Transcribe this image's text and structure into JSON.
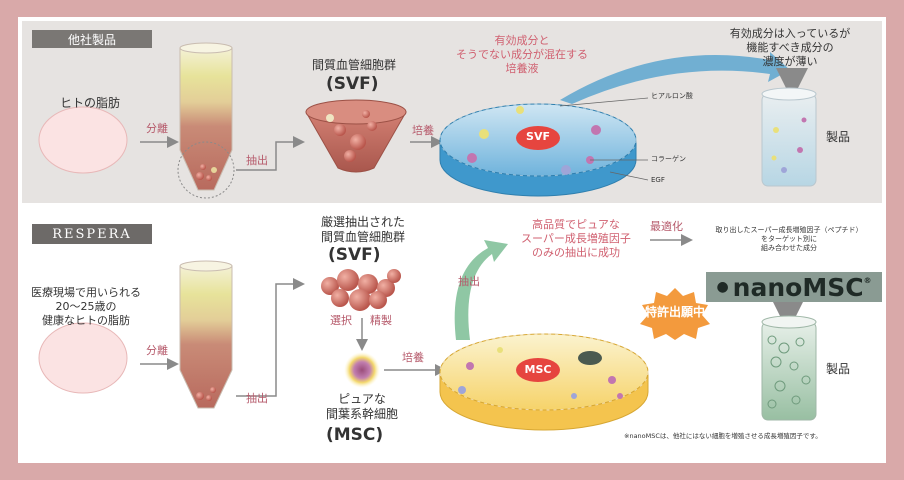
{
  "top": {
    "tag": "他社製品",
    "fat_label": "ヒトの脂肪",
    "step_separate": "分離",
    "step_extract": "抽出",
    "svf_title": "間質血管細胞群",
    "svf_abbr": "(SVF)",
    "step_culture": "培養",
    "dish_caption": [
      "有効成分と",
      "そうでない成分が混在する",
      "培養液"
    ],
    "dish_badge": "SVF",
    "ingredients": [
      "ヒアルロン酸",
      "コラーゲン",
      "EGF"
    ],
    "product_caption": [
      "有効成分は入っているが",
      "機能すべき成分の",
      "濃度が薄い"
    ],
    "product_label": "製品"
  },
  "bottom": {
    "tag": "RESPERA",
    "fat_label": [
      "医療現場で用いられる",
      "20〜25歳の",
      "健康なヒトの脂肪"
    ],
    "step_separate": "分離",
    "step_extract": "抽出",
    "svf_title": [
      "厳選抽出された",
      "間質血管細胞群"
    ],
    "svf_abbr": "(SVF)",
    "step_select": "選択",
    "step_refine": "精製",
    "msc_title": [
      "ピュアな",
      "間葉系幹細胞"
    ],
    "msc_abbr": "(MSC)",
    "step_culture": "培養",
    "dish_badge": "MSC",
    "step_extract2": "抽出",
    "success_caption": [
      "高品質でピュアな",
      "スーパー成長増殖因子",
      "のみの抽出に成功"
    ],
    "step_optimize": "最適化",
    "factor_caption": [
      "取り出したスーパー成長増殖因子（ペプチド）",
      "をターゲット別に",
      "組み合わせた成分"
    ],
    "patent_badge": "特許出願中",
    "logo": "nanoMSC",
    "logo_mark": "®",
    "product_label": "製品",
    "footnote": "※nanoMSCは、他社にはない細胞を増殖させる成長増殖因子です。"
  },
  "colors": {
    "outer_bg": "#d9a9a9",
    "top_panel": "#e6e3e1",
    "accent_text": "#b65a6b",
    "arrow_gray": "#8a8a8a",
    "arrow_green": "#8fc7a4",
    "arrow_blue": "#3f98cc"
  }
}
